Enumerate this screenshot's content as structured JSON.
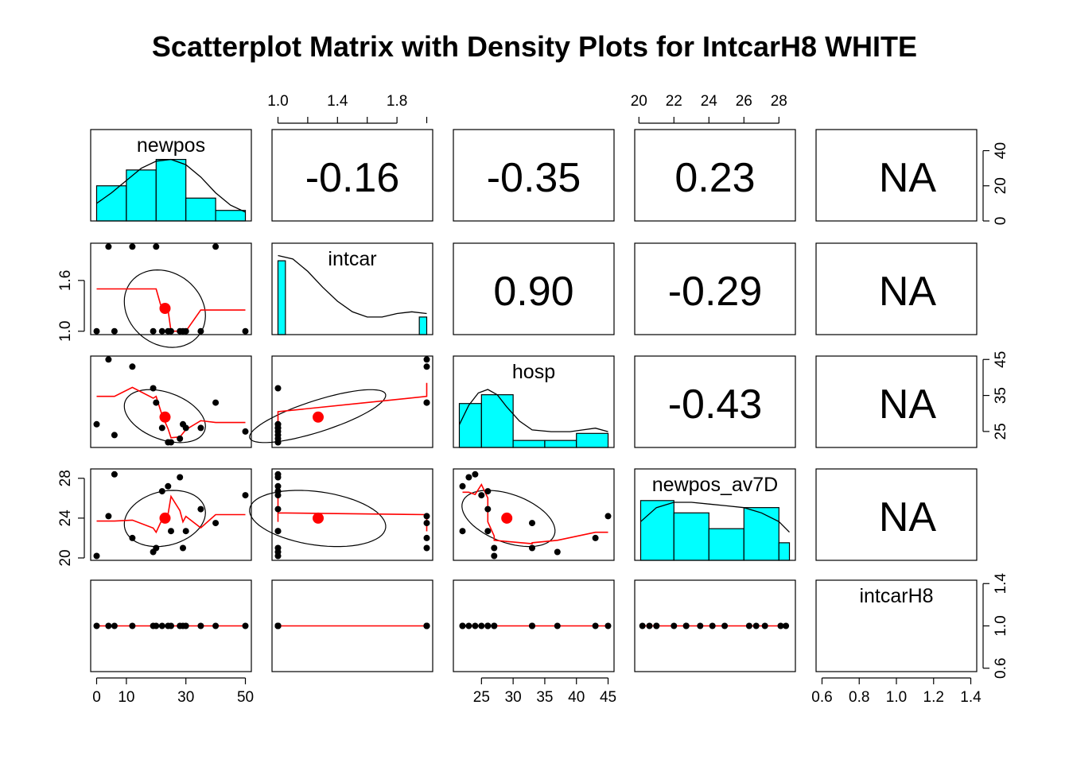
{
  "chart_data": {
    "type": "scatter",
    "title": "Scatterplot Matrix with Density Plots for IntcarH8 WHITE",
    "variables": [
      "newpos",
      "intcar",
      "hosp",
      "newpos_av7D",
      "intcarH8"
    ],
    "axes": {
      "newpos": {
        "ticks": [
          "0",
          "10",
          "30",
          "50"
        ],
        "tick_values": [
          0,
          10,
          30,
          50
        ],
        "range": [
          0,
          50
        ]
      },
      "intcar": {
        "ticks": [
          "1.0",
          "1.4",
          "1.8"
        ],
        "tick_values": [
          1.0,
          1.4,
          1.8
        ],
        "range": [
          1.0,
          2.0
        ]
      },
      "hosp": {
        "ticks": [
          "25",
          "30",
          "35",
          "40",
          "45"
        ],
        "tick_values": [
          25,
          30,
          35,
          40,
          45
        ],
        "range": [
          21.5,
          45
        ]
      },
      "newpos_av7D": {
        "ticks": [
          "20",
          "22",
          "24",
          "26",
          "28"
        ],
        "tick_values": [
          20,
          22,
          24,
          26,
          28
        ],
        "range": [
          20.1,
          28.6
        ]
      },
      "intcarH8": {
        "ticks": [
          "0.6",
          "0.8",
          "1.0",
          "1.2",
          "1.4"
        ],
        "tick_values": [
          0.6,
          0.8,
          1.0,
          1.2,
          1.4
        ],
        "range": [
          0.6,
          1.4
        ]
      }
    },
    "axes_y": {
      "intcar": {
        "ticks": [
          "1.0",
          "1.6"
        ],
        "tick_values": [
          1.0,
          1.6
        ]
      },
      "hosp": {
        "ticks": [
          "25",
          "35",
          "45"
        ],
        "tick_values": [
          25,
          35,
          45
        ]
      },
      "newpos_av7D": {
        "ticks": [
          "20",
          "24",
          "28"
        ],
        "tick_values": [
          20,
          24,
          28
        ]
      },
      "intcarH8": {
        "ticks": [
          "0.6",
          "1.0",
          "1.4"
        ],
        "tick_values": [
          0.6,
          1.0,
          1.4
        ]
      },
      "hist_count": {
        "ticks": [
          "0",
          "20",
          "40"
        ],
        "tick_values": [
          0,
          20,
          40
        ],
        "range": [
          0,
          52
        ]
      }
    },
    "correlations": [
      {
        "row": 0,
        "col": 1,
        "text": "-0.16"
      },
      {
        "row": 0,
        "col": 2,
        "text": "-0.35"
      },
      {
        "row": 0,
        "col": 3,
        "text": "0.23"
      },
      {
        "row": 0,
        "col": 4,
        "text": "NA"
      },
      {
        "row": 1,
        "col": 2,
        "text": "0.90"
      },
      {
        "row": 1,
        "col": 3,
        "text": "-0.29"
      },
      {
        "row": 1,
        "col": 4,
        "text": "NA"
      },
      {
        "row": 2,
        "col": 3,
        "text": "-0.43"
      },
      {
        "row": 2,
        "col": 4,
        "text": "NA"
      },
      {
        "row": 3,
        "col": 4,
        "text": "NA"
      }
    ],
    "observations": {
      "newpos": [
        0,
        4,
        6,
        12,
        19,
        20,
        22,
        24,
        25,
        28,
        29,
        30,
        35,
        40,
        50
      ],
      "intcar": [
        1,
        2,
        1,
        2,
        1,
        2,
        1,
        1,
        1,
        1,
        1,
        1,
        1,
        2,
        1
      ],
      "hosp": [
        27,
        45,
        24,
        43,
        37,
        33,
        26,
        22,
        22,
        23,
        27,
        26,
        26,
        33,
        25
      ],
      "newpos_av7D": [
        20.2,
        24.2,
        28.4,
        22.0,
        20.6,
        21.0,
        26.7,
        27.2,
        22.7,
        28.1,
        21.0,
        22.7,
        24.9,
        23.5,
        26.3
      ],
      "intcarH8": [
        1,
        1,
        1,
        1,
        1,
        1,
        1,
        1,
        1,
        1,
        1,
        1,
        1,
        1,
        1
      ]
    },
    "histograms": {
      "newpos": {
        "breaks": [
          0,
          10,
          20,
          30,
          40,
          50
        ],
        "counts": [
          20,
          29,
          35,
          13,
          6
        ]
      },
      "intcar": {
        "breaks": [
          1.0,
          1.05,
          1.95,
          2.0
        ],
        "counts": [
          42,
          0,
          10
        ]
      },
      "hosp": {
        "breaks": [
          21.5,
          25,
          30,
          35,
          40,
          45
        ],
        "counts": [
          25,
          30,
          4,
          4,
          8
        ]
      },
      "newpos_av7D": {
        "breaks": [
          20.1,
          22,
          24,
          26,
          28,
          28.6
        ],
        "counts": [
          34,
          27,
          18,
          30,
          10
        ]
      }
    },
    "density_curves": {
      "newpos": [
        [
          0,
          10
        ],
        [
          5,
          16
        ],
        [
          10,
          23
        ],
        [
          15,
          30
        ],
        [
          20,
          34
        ],
        [
          25,
          35
        ],
        [
          30,
          32
        ],
        [
          35,
          25
        ],
        [
          40,
          16
        ],
        [
          45,
          9
        ],
        [
          50,
          5
        ]
      ],
      "intcar": [
        [
          1.0,
          45
        ],
        [
          1.1,
          43
        ],
        [
          1.2,
          36
        ],
        [
          1.3,
          27
        ],
        [
          1.4,
          19
        ],
        [
          1.5,
          13
        ],
        [
          1.6,
          10
        ],
        [
          1.7,
          10
        ],
        [
          1.8,
          12
        ],
        [
          1.9,
          13
        ],
        [
          2.0,
          12
        ]
      ],
      "hosp": [
        [
          21.5,
          13
        ],
        [
          23,
          24
        ],
        [
          24.5,
          31
        ],
        [
          26,
          33
        ],
        [
          27.5,
          30
        ],
        [
          29,
          23
        ],
        [
          31,
          15
        ],
        [
          33,
          10
        ],
        [
          36,
          9
        ],
        [
          39,
          9
        ],
        [
          41,
          10
        ],
        [
          43,
          11
        ],
        [
          45,
          9
        ]
      ],
      "newpos_av7D": [
        [
          20.1,
          22
        ],
        [
          21,
          30
        ],
        [
          22,
          33
        ],
        [
          23,
          33
        ],
        [
          24,
          32
        ],
        [
          25,
          31
        ],
        [
          26,
          30
        ],
        [
          27,
          27
        ],
        [
          28,
          22
        ],
        [
          28.6,
          16
        ]
      ]
    },
    "means": {
      "newpos": 23.0,
      "intcar": 1.27,
      "hosp": 29.0,
      "newpos_av7D": 24.0
    },
    "colors": {
      "hist_fill": "#00ffff",
      "smooth": "#ff0000",
      "mean_point": "#ff0000",
      "points": "#000000",
      "frame": "#000000"
    },
    "grid": false,
    "legend": "none"
  }
}
